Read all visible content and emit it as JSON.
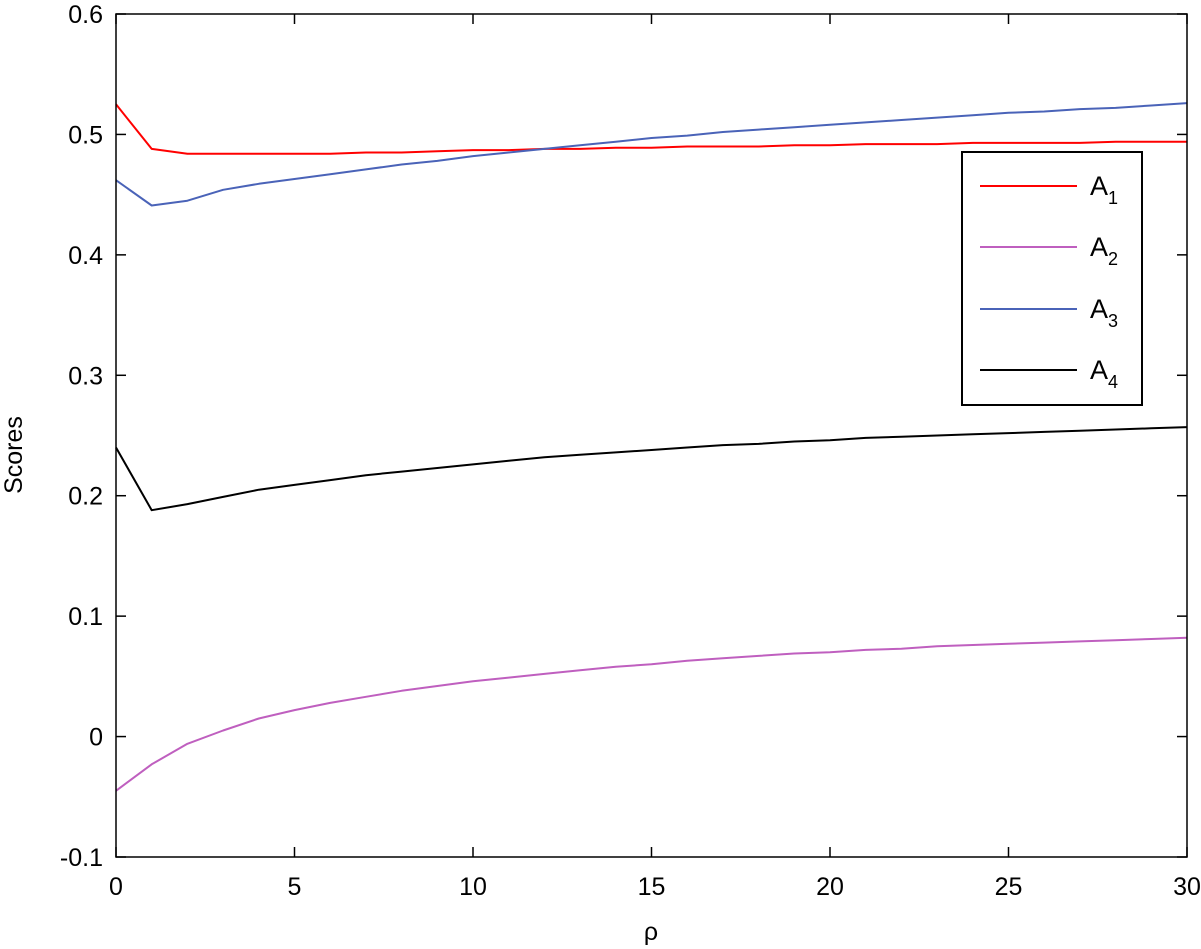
{
  "chart_data": {
    "type": "line",
    "title": "",
    "xlabel": "ρ",
    "ylabel": "Scores",
    "xlim": [
      0,
      30
    ],
    "ylim": [
      -0.1,
      0.6
    ],
    "x_ticks": [
      "0",
      "5",
      "10",
      "15",
      "20",
      "25",
      "30"
    ],
    "y_ticks": [
      "-0.1",
      "0",
      "0.1",
      "0.2",
      "0.3",
      "0.4",
      "0.5",
      "0.6"
    ],
    "grid": false,
    "legend_position": "top-right",
    "x": [
      0,
      1,
      2,
      3,
      4,
      5,
      6,
      7,
      8,
      9,
      10,
      11,
      12,
      13,
      14,
      15,
      16,
      17,
      18,
      19,
      20,
      21,
      22,
      23,
      24,
      25,
      26,
      27,
      28,
      29,
      30
    ],
    "series": [
      {
        "name": "A1",
        "label_main": "A",
        "label_sub": "1",
        "color": "#ff0000",
        "values": [
          0.525,
          0.488,
          0.484,
          0.484,
          0.484,
          0.484,
          0.484,
          0.485,
          0.485,
          0.486,
          0.487,
          0.487,
          0.488,
          0.488,
          0.489,
          0.489,
          0.49,
          0.49,
          0.49,
          0.491,
          0.491,
          0.492,
          0.492,
          0.492,
          0.493,
          0.493,
          0.493,
          0.493,
          0.494,
          0.494,
          0.494
        ]
      },
      {
        "name": "A2",
        "label_main": "A",
        "label_sub": "2",
        "color": "#bf5fbf",
        "values": [
          -0.045,
          -0.023,
          -0.006,
          0.005,
          0.015,
          0.022,
          0.028,
          0.033,
          0.038,
          0.042,
          0.046,
          0.049,
          0.052,
          0.055,
          0.058,
          0.06,
          0.063,
          0.065,
          0.067,
          0.069,
          0.07,
          0.072,
          0.073,
          0.075,
          0.076,
          0.077,
          0.078,
          0.079,
          0.08,
          0.081,
          0.082
        ]
      },
      {
        "name": "A3",
        "label_main": "A",
        "label_sub": "3",
        "color": "#4a63b8",
        "values": [
          0.462,
          0.441,
          0.445,
          0.454,
          0.459,
          0.463,
          0.467,
          0.471,
          0.475,
          0.478,
          0.482,
          0.485,
          0.488,
          0.491,
          0.494,
          0.497,
          0.499,
          0.502,
          0.504,
          0.506,
          0.508,
          0.51,
          0.512,
          0.514,
          0.516,
          0.518,
          0.519,
          0.521,
          0.522,
          0.524,
          0.526
        ]
      },
      {
        "name": "A4",
        "label_main": "A",
        "label_sub": "4",
        "color": "#000000",
        "values": [
          0.24,
          0.188,
          0.193,
          0.199,
          0.205,
          0.209,
          0.213,
          0.217,
          0.22,
          0.223,
          0.226,
          0.229,
          0.232,
          0.234,
          0.236,
          0.238,
          0.24,
          0.242,
          0.243,
          0.245,
          0.246,
          0.248,
          0.249,
          0.25,
          0.251,
          0.252,
          0.253,
          0.254,
          0.255,
          0.256,
          0.257
        ]
      }
    ]
  }
}
